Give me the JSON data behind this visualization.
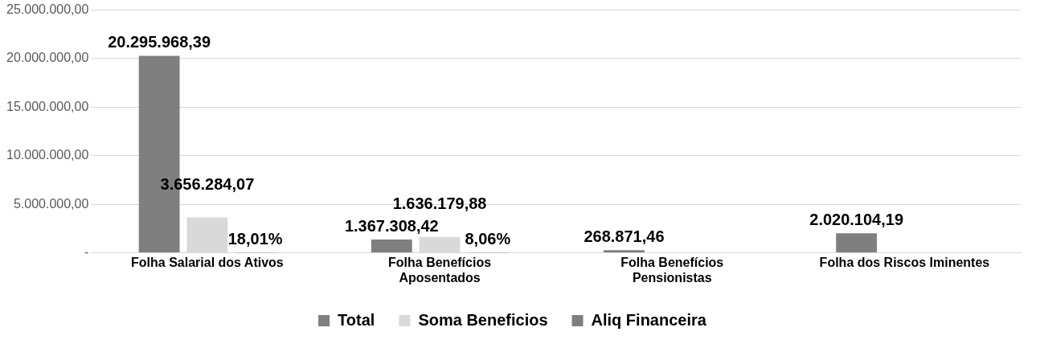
{
  "chart_data": {
    "type": "bar",
    "categories": [
      "Folha Salarial dos Ativos",
      "Folha Benefícios Aposentados",
      "Folha Benefícios Pensionistas",
      "Folha dos Riscos Iminentes"
    ],
    "series": [
      {
        "name": "Total",
        "color": "#7f7f7f",
        "values": [
          20295968.39,
          1367308.42,
          268871.46,
          2020104.19
        ],
        "value_labels": [
          "20.295.968,39",
          "1.367.308,42",
          "268.871,46",
          "2.020.104,19"
        ]
      },
      {
        "name": "Soma Beneficios",
        "color": "#d9d9d9",
        "values": [
          3656284.07,
          1636179.88,
          null,
          null
        ],
        "value_labels": [
          "3.656.284,07",
          "1.636.179,88",
          null,
          null
        ]
      },
      {
        "name": "Aliq Financeira",
        "color": "#7f7f7f",
        "values": [
          0.1801,
          0.0806,
          null,
          null
        ],
        "value_labels": [
          "18,01%",
          "8,06%",
          null,
          null
        ]
      }
    ],
    "ylim": [
      0,
      25000000
    ],
    "yticks": [
      {
        "value": 0,
        "label": "-"
      },
      {
        "value": 5000000,
        "label": "5.000.000,00"
      },
      {
        "value": 10000000,
        "label": "10.000.000,00"
      },
      {
        "value": 15000000,
        "label": "15.000.000,00"
      },
      {
        "value": 20000000,
        "label": "20.000.000,00"
      },
      {
        "value": 25000000,
        "label": "25.000.000,00"
      }
    ],
    "grid": "y",
    "legend": "bottom"
  }
}
